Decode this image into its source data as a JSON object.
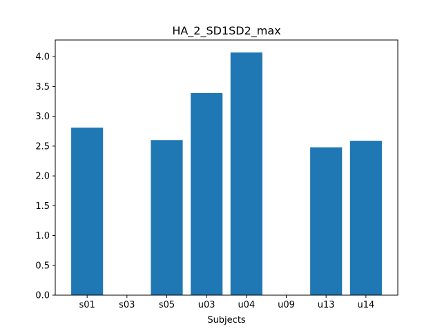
{
  "chart_data": {
    "type": "bar",
    "title": "HA_2_SD1SD2_max",
    "xlabel": "Subjects",
    "ylabel": "",
    "categories": [
      "s01",
      "s03",
      "s05",
      "u03",
      "u04",
      "u09",
      "u13",
      "u14"
    ],
    "values": [
      2.81,
      0,
      2.6,
      3.39,
      4.07,
      0,
      2.48,
      2.59
    ],
    "ylim": [
      0,
      4.28
    ],
    "yticks": [
      0.0,
      0.5,
      1.0,
      1.5,
      2.0,
      2.5,
      3.0,
      3.5,
      4.0
    ],
    "ytick_labels": [
      "0.0",
      "0.5",
      "1.0",
      "1.5",
      "2.0",
      "2.5",
      "3.0",
      "3.5",
      "4.0"
    ],
    "bar_color": "#1f77b4",
    "grid": false
  }
}
